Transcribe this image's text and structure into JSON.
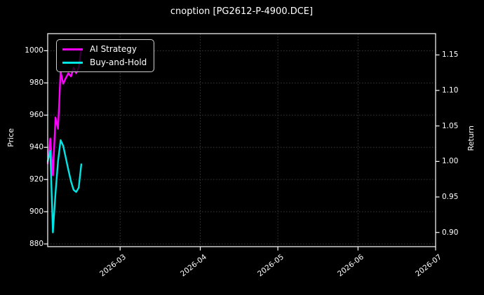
{
  "title": "cnoption [PG2612-P-4900.DCE]",
  "colors": {
    "background": "#000000",
    "text": "#ffffff",
    "spine": "#ffffff",
    "grid": "#3a3a3a",
    "ai_strategy_line": "#ff00ff",
    "buy_and_hold_line": "#00e5e5",
    "legend_border": "#cfcfcf"
  },
  "chart_data": {
    "type": "line",
    "title": "cnoption [PG2612-P-4900.DCE]",
    "xlabel": "",
    "ylabel_left": "Price",
    "ylabel_right": "Return",
    "grid": "dotted",
    "legend_position": "upper-left",
    "xlim": [
      "2026-02-01",
      "2026-07-01"
    ],
    "ylim_left": [
      878.3,
      1010.6
    ],
    "ylim_right": [
      0.88,
      1.18
    ],
    "yticks_left": [
      880,
      900,
      920,
      940,
      960,
      980,
      1000
    ],
    "yticks_right": [
      0.9,
      0.95,
      1.0,
      1.05,
      1.1,
      1.15
    ],
    "xticks": [
      {
        "date": "2026-03-01",
        "label": "2026-03"
      },
      {
        "date": "2026-04-01",
        "label": "2026-04"
      },
      {
        "date": "2026-05-01",
        "label": "2026-05"
      },
      {
        "date": "2026-06-01",
        "label": "2026-06"
      },
      {
        "date": "2026-07-01",
        "label": "2026-07"
      }
    ],
    "x": [
      "2026-02-01",
      "2026-02-02",
      "2026-02-03",
      "2026-02-04",
      "2026-02-05",
      "2026-02-06",
      "2026-02-07",
      "2026-02-08",
      "2026-02-09",
      "2026-02-10",
      "2026-02-11",
      "2026-02-12",
      "2026-02-13",
      "2026-02-14"
    ],
    "series": [
      {
        "name": "AI Strategy",
        "axis": "left",
        "color": "#ff00ff",
        "values": [
          930,
          945.5,
          922.5,
          958.5,
          951.5,
          987,
          979.5,
          983,
          986,
          984,
          989.5,
          986,
          989.5,
          1001
        ]
      },
      {
        "name": "Buy-and-Hold",
        "axis": "right",
        "color": "#00e5e5",
        "values": [
          1.0,
          1.015,
          0.9,
          0.955,
          1.0,
          1.03,
          1.022,
          1.005,
          0.988,
          0.972,
          0.96,
          0.957,
          0.963,
          0.996
        ]
      }
    ],
    "legend": {
      "entries": [
        {
          "name": "AI Strategy",
          "color": "#ff00ff"
        },
        {
          "name": "Buy-and-Hold",
          "color": "#00e5e5"
        }
      ]
    }
  }
}
